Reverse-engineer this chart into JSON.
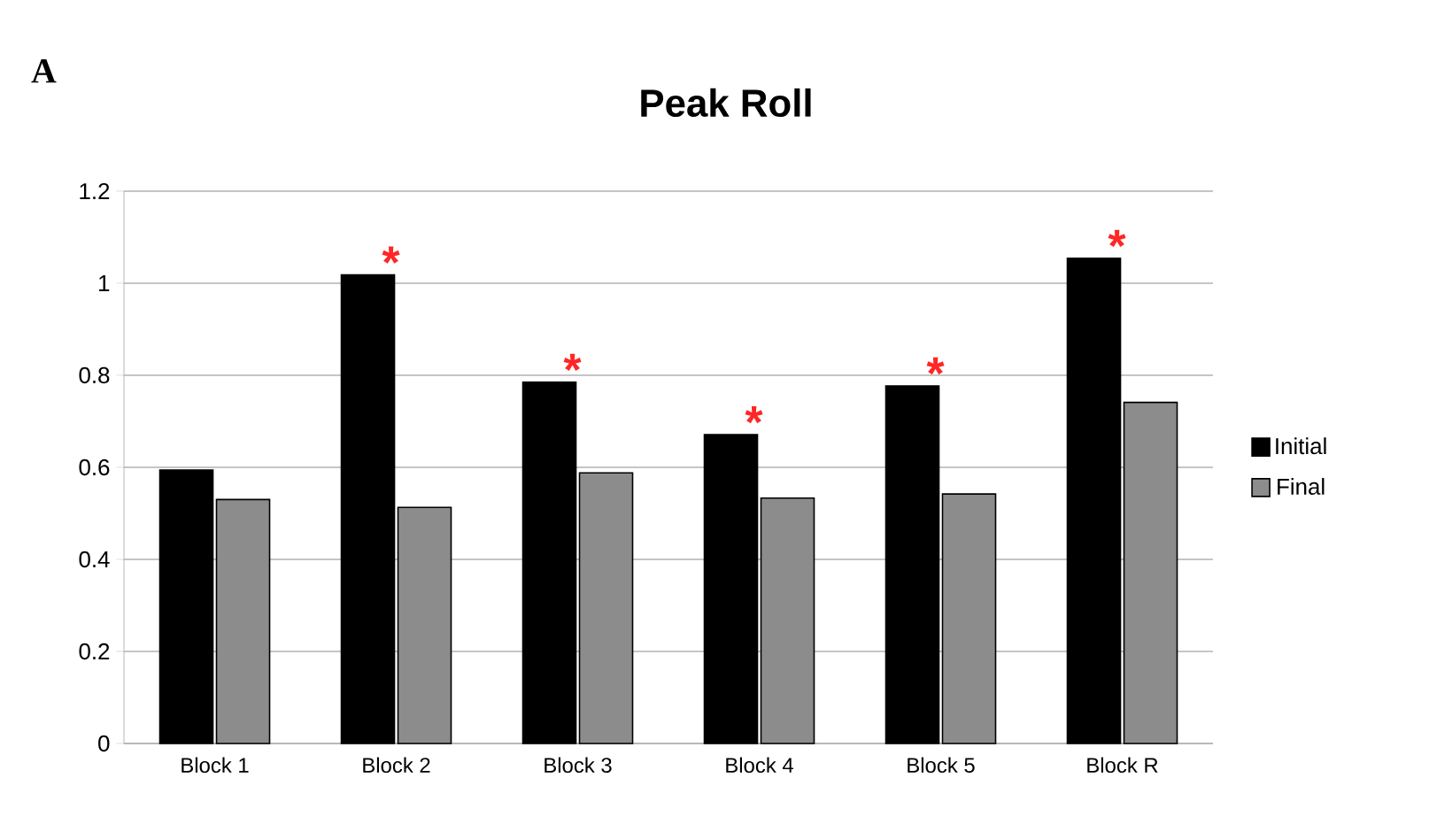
{
  "chart_data": {
    "type": "bar",
    "title": "Peak Roll",
    "categories": [
      "Block 1",
      "Block 2",
      "Block 3",
      "Block 4",
      "Block 5",
      "Block R"
    ],
    "series": [
      {
        "name": "Initial",
        "color": "#000000",
        "values": [
          0.594,
          1.018,
          0.785,
          0.671,
          0.777,
          1.054
        ]
      },
      {
        "name": "Final",
        "color": "#8c8c8c",
        "values": [
          0.53,
          0.513,
          0.588,
          0.533,
          0.542,
          0.741
        ]
      }
    ],
    "ylim": [
      0,
      1.2
    ],
    "yticks": [
      0,
      0.2,
      0.4,
      0.6,
      0.8,
      1,
      1.2
    ],
    "grid": "y",
    "legend": "right",
    "annotations": [
      "A",
      {
        "text": "*",
        "x": "Block 2",
        "y": 1.018
      },
      {
        "text": "*",
        "x": "Block 3",
        "y": 0.785
      },
      {
        "text": "*",
        "x": "Block 4",
        "y": 0.671
      },
      {
        "text": "*",
        "x": "Block 5",
        "y": 0.777
      },
      {
        "text": "*",
        "x": "Block R",
        "y": 1.054
      }
    ]
  }
}
